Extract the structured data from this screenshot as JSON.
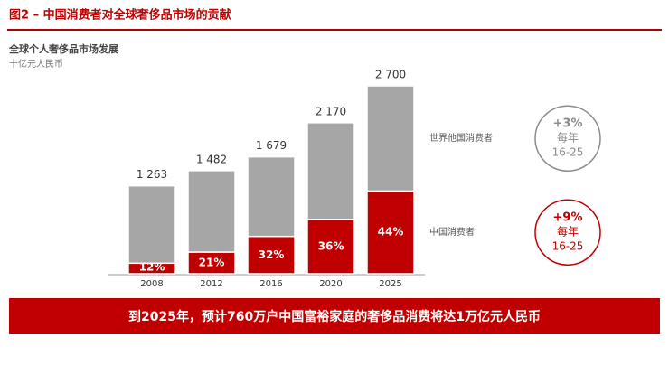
{
  "header": {
    "title": "图2 – 中国消费者对全球奢侈品市场的贡献"
  },
  "chart_data": {
    "type": "stacked-bar",
    "title": "全球个人奢侈品市场发展",
    "subtitle": "十亿元人民币",
    "categories": [
      "2008",
      "2012",
      "2016",
      "2020",
      "2025"
    ],
    "series": [
      {
        "name": "中国消费者",
        "color": "#c00000",
        "values": [
          152,
          311,
          537,
          781,
          1188
        ],
        "share_labels": [
          "12%",
          "21%",
          "32%",
          "36%",
          "44%"
        ]
      },
      {
        "name": "世界他国消费者",
        "color": "#a6a6a6",
        "values": [
          1111,
          1171,
          1142,
          1389,
          1512
        ]
      }
    ],
    "totals": {
      "values": [
        1263,
        1482,
        1679,
        2170,
        2700
      ],
      "value_labels": [
        "1 263",
        "1 482",
        "1 679",
        "2 170",
        "2 700"
      ]
    },
    "ylim": [
      0,
      2700
    ],
    "annotations": [
      {
        "series": 1,
        "growth": "+3%",
        "period": "每年",
        "range": "16-25",
        "color": "#8c8c8c"
      },
      {
        "series": 0,
        "growth": "+9%",
        "period": "每年",
        "range": "16-25",
        "color": "#c00000"
      }
    ]
  },
  "footer": {
    "text": "到2025年，预计760万户中国富裕家庭的奢侈品消费将达1万亿元人民币"
  }
}
